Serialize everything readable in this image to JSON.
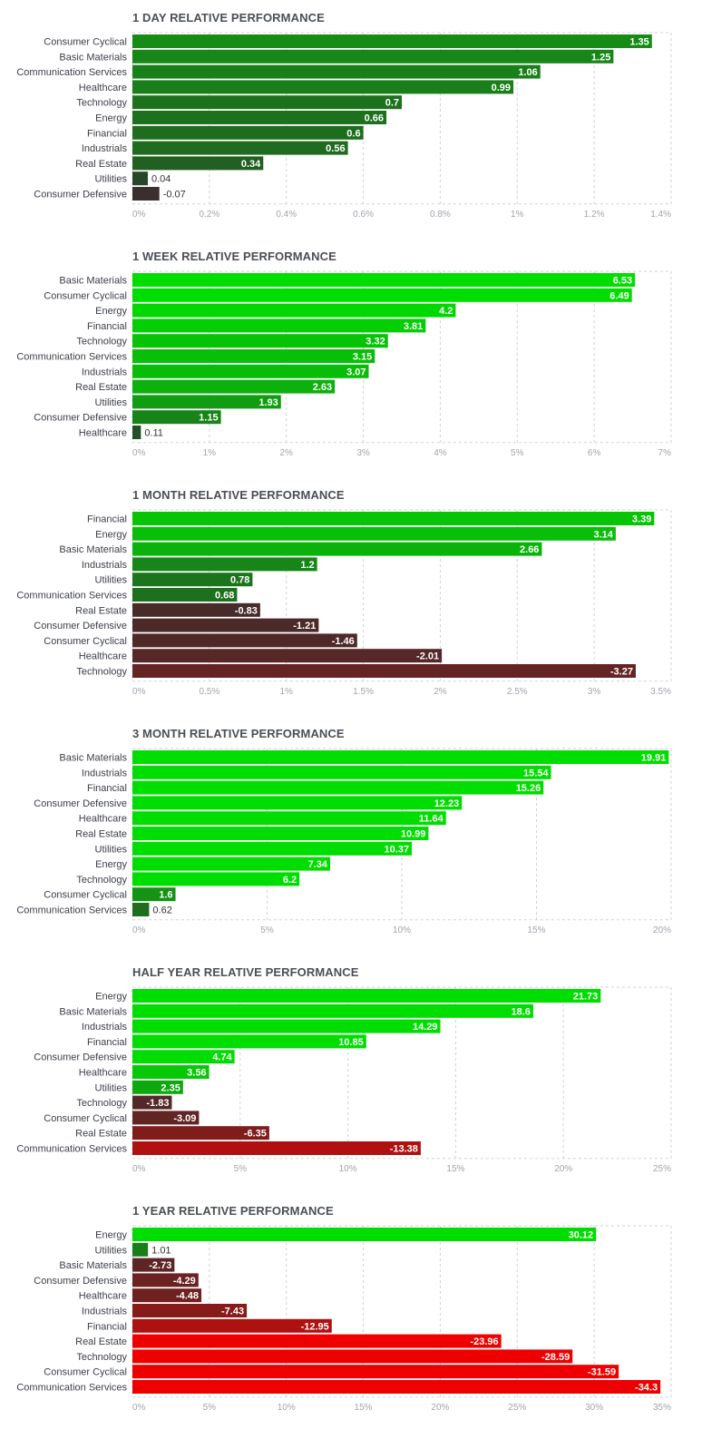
{
  "chart_data": [
    {
      "type": "bar",
      "orientation": "horizontal",
      "title": "1 DAY RELATIVE PERFORMANCE",
      "categories": [
        "Consumer Cyclical",
        "Basic Materials",
        "Communication Services",
        "Healthcare",
        "Technology",
        "Energy",
        "Financial",
        "Industrials",
        "Real Estate",
        "Utilities",
        "Consumer Defensive"
      ],
      "values": [
        1.35,
        1.25,
        1.06,
        0.99,
        0.7,
        0.66,
        0.6,
        0.56,
        0.34,
        0.04,
        -0.07
      ],
      "value_labels": [
        "1.35",
        "1.25",
        "1.06",
        "0.99",
        "0.7",
        "0.66",
        "0.6",
        "0.56",
        "0.34",
        "0.04",
        "-0.07"
      ],
      "xlim": [
        0,
        1.4
      ],
      "ticks": [
        "0%",
        "0.2%",
        "0.4%",
        "0.6%",
        "0.8%",
        "1%",
        "1.2%",
        "1.4%"
      ],
      "grid": true
    },
    {
      "type": "bar",
      "orientation": "horizontal",
      "title": "1 WEEK RELATIVE PERFORMANCE",
      "categories": [
        "Basic Materials",
        "Consumer Cyclical",
        "Energy",
        "Financial",
        "Technology",
        "Communication Services",
        "Industrials",
        "Real Estate",
        "Utilities",
        "Consumer Defensive",
        "Healthcare"
      ],
      "values": [
        6.53,
        6.49,
        4.2,
        3.81,
        3.32,
        3.15,
        3.07,
        2.63,
        1.93,
        1.15,
        0.11
      ],
      "value_labels": [
        "6.53",
        "6.49",
        "4.2",
        "3.81",
        "3.32",
        "3.15",
        "3.07",
        "2.63",
        "1.93",
        "1.15",
        "0.11"
      ],
      "xlim": [
        0,
        7
      ],
      "ticks": [
        "0%",
        "1%",
        "2%",
        "3%",
        "4%",
        "5%",
        "6%",
        "7%"
      ],
      "grid": true
    },
    {
      "type": "bar",
      "orientation": "horizontal",
      "title": "1 MONTH RELATIVE PERFORMANCE",
      "categories": [
        "Financial",
        "Energy",
        "Basic Materials",
        "Industrials",
        "Utilities",
        "Communication Services",
        "Real Estate",
        "Consumer Defensive",
        "Consumer Cyclical",
        "Healthcare",
        "Technology"
      ],
      "values": [
        3.39,
        3.14,
        2.66,
        1.2,
        0.78,
        0.68,
        -0.83,
        -1.21,
        -1.46,
        -2.01,
        -3.27
      ],
      "value_labels": [
        "3.39",
        "3.14",
        "2.66",
        "1.2",
        "0.78",
        "0.68",
        "-0.83",
        "-1.21",
        "-1.46",
        "-2.01",
        "-3.27"
      ],
      "xlim": [
        0,
        3.5
      ],
      "ticks": [
        "0%",
        "0.5%",
        "1%",
        "1.5%",
        "2%",
        "2.5%",
        "3%",
        "3.5%"
      ],
      "grid": true
    },
    {
      "type": "bar",
      "orientation": "horizontal",
      "title": "3 MONTH RELATIVE PERFORMANCE",
      "categories": [
        "Basic Materials",
        "Industrials",
        "Financial",
        "Consumer Defensive",
        "Healthcare",
        "Real Estate",
        "Utilities",
        "Energy",
        "Technology",
        "Consumer Cyclical",
        "Communication Services"
      ],
      "values": [
        19.91,
        15.54,
        15.26,
        12.23,
        11.64,
        10.99,
        10.37,
        7.34,
        6.2,
        1.6,
        0.62
      ],
      "value_labels": [
        "19.91",
        "15.54",
        "15.26",
        "12.23",
        "11.64",
        "10.99",
        "10.37",
        "7.34",
        "6.2",
        "1.6",
        "0.62"
      ],
      "xlim": [
        0,
        20
      ],
      "ticks": [
        "0%",
        "5%",
        "10%",
        "15%",
        "20%"
      ],
      "grid": true
    },
    {
      "type": "bar",
      "orientation": "horizontal",
      "title": "HALF YEAR RELATIVE PERFORMANCE",
      "categories": [
        "Energy",
        "Basic Materials",
        "Industrials",
        "Financial",
        "Consumer Defensive",
        "Healthcare",
        "Utilities",
        "Technology",
        "Consumer Cyclical",
        "Real Estate",
        "Communication Services"
      ],
      "values": [
        21.73,
        18.6,
        14.29,
        10.85,
        4.74,
        3.56,
        2.35,
        -1.83,
        -3.09,
        -6.35,
        -13.38
      ],
      "value_labels": [
        "21.73",
        "18.6",
        "14.29",
        "10.85",
        "4.74",
        "3.56",
        "2.35",
        "-1.83",
        "-3.09",
        "-6.35",
        "-13.38"
      ],
      "xlim": [
        0,
        25
      ],
      "ticks": [
        "0%",
        "5%",
        "10%",
        "15%",
        "20%",
        "25%"
      ],
      "grid": true
    },
    {
      "type": "bar",
      "orientation": "horizontal",
      "title": "1 YEAR RELATIVE PERFORMANCE",
      "categories": [
        "Energy",
        "Utilities",
        "Basic Materials",
        "Consumer Defensive",
        "Healthcare",
        "Industrials",
        "Financial",
        "Real Estate",
        "Technology",
        "Consumer Cyclical",
        "Communication Services"
      ],
      "values": [
        30.12,
        1.01,
        -2.73,
        -4.29,
        -4.48,
        -7.43,
        -12.95,
        -23.96,
        -28.59,
        -31.59,
        -34.3
      ],
      "value_labels": [
        "30.12",
        "1.01",
        "-2.73",
        "-4.29",
        "-4.48",
        "-7.43",
        "-12.95",
        "-23.96",
        "-28.59",
        "-31.59",
        "-34.3"
      ],
      "xlim": [
        0,
        35
      ],
      "ticks": [
        "0%",
        "5%",
        "10%",
        "15%",
        "20%",
        "25%",
        "30%",
        "35%"
      ],
      "grid": true
    }
  ],
  "colors": {
    "title": "#4a4f57",
    "category_label": "#3c4048",
    "tick_label": "#a0a4ab",
    "grid": "#cfd2d6",
    "value_label_inside": "#ffffff",
    "value_label_outside": "#333333"
  }
}
